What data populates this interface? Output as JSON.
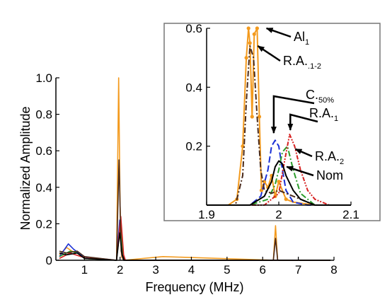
{
  "chart_data": [
    {
      "type": "line",
      "xlabel": "Frequency (MHz)",
      "ylabel": "Normalized Amplitude",
      "xlim": [
        0.2,
        8
      ],
      "ylim": [
        0,
        1.0
      ],
      "xticks": [
        "1",
        "2",
        "3",
        "4",
        "5",
        "6",
        "7",
        "8"
      ],
      "yticks": [
        "0",
        "0.2",
        "0.4",
        "0.6",
        "0.8",
        "1.0"
      ],
      "grid": false,
      "series": [
        {
          "color": "#f39a1e",
          "x": [
            0.3,
            0.5,
            0.65,
            0.8,
            1.0,
            1.9,
            1.96,
            2.0,
            2.04,
            2.1,
            3.2,
            6.3,
            6.36,
            6.42,
            7.9
          ],
          "y": [
            0.03,
            0.07,
            0.05,
            0.04,
            0.01,
            0.0,
            1.0,
            0.3,
            0.02,
            0.0,
            0.02,
            0.0,
            0.19,
            0.0,
            0.0
          ]
        },
        {
          "color": "#1a2fd6",
          "x": [
            0.3,
            0.55,
            0.7,
            0.9,
            1.1,
            1.9,
            1.99,
            2.05,
            2.1,
            7.9
          ],
          "y": [
            0.02,
            0.09,
            0.06,
            0.03,
            0.01,
            0.0,
            0.22,
            0.03,
            0.0,
            0.0
          ]
        },
        {
          "color": "#2a9d2a",
          "x": [
            0.3,
            0.6,
            0.8,
            1.0,
            1.9,
            2.01,
            2.08,
            2.12,
            7.9
          ],
          "y": [
            0.02,
            0.05,
            0.04,
            0.01,
            0.0,
            0.2,
            0.04,
            0.0,
            0.0
          ]
        },
        {
          "color": "#d62020",
          "x": [
            0.3,
            0.6,
            0.9,
            1.9,
            2.02,
            2.1,
            2.15,
            7.9
          ],
          "y": [
            0.01,
            0.04,
            0.02,
            0.0,
            0.24,
            0.03,
            0.0,
            0.0
          ]
        },
        {
          "color": "#4a2a1a",
          "x": [
            0.3,
            0.5,
            0.8,
            1.0,
            1.9,
            1.97,
            2.03,
            2.1,
            6.3,
            6.36,
            6.42,
            7.9
          ],
          "y": [
            0.05,
            0.04,
            0.05,
            0.02,
            0.0,
            0.55,
            0.05,
            0.0,
            0.0,
            0.12,
            0.0,
            0.0
          ]
        },
        {
          "color": "#000000",
          "x": [
            0.3,
            0.5,
            0.8,
            1.0,
            1.9,
            1.99,
            2.06,
            2.12,
            7.9
          ],
          "y": [
            0.04,
            0.03,
            0.04,
            0.01,
            0.0,
            0.15,
            0.03,
            0.0,
            0.0
          ]
        }
      ]
    },
    {
      "type": "line",
      "xlim": [
        1.9,
        2.1
      ],
      "ylim": [
        0,
        0.6
      ],
      "xticks": [
        "1.9",
        "2",
        "2.1"
      ],
      "yticks": [
        "0.2",
        "0.4",
        "0.6"
      ],
      "grid": false,
      "series": [
        {
          "color": "#f39a1e",
          "dash": "solid",
          "markers": true,
          "x": [
            1.9,
            1.93,
            1.942,
            1.95,
            1.955,
            1.958,
            1.96,
            1.963,
            1.966,
            1.97,
            1.973,
            1.976,
            1.98,
            1.985,
            1.99,
            1.995,
            2.0,
            2.01,
            2.02,
            2.05,
            2.1
          ],
          "y": [
            0.0,
            0.0,
            0.02,
            0.2,
            0.5,
            0.6,
            0.55,
            0.3,
            0.58,
            0.6,
            0.3,
            0.05,
            0.08,
            0.06,
            0.1,
            0.03,
            0.08,
            0.02,
            0.01,
            0.0,
            0.0
          ]
        },
        {
          "color": "#1a2fd6",
          "dash": "longdash",
          "x": [
            1.9,
            1.96,
            1.975,
            1.985,
            1.99,
            1.995,
            2.0,
            2.005,
            2.01,
            2.02,
            2.04,
            2.1
          ],
          "y": [
            0.0,
            0.0,
            0.03,
            0.12,
            0.2,
            0.22,
            0.2,
            0.12,
            0.05,
            0.01,
            0.0,
            0.0
          ]
        },
        {
          "color": "#2a9d2a",
          "dash": "dashdot",
          "x": [
            1.9,
            1.96,
            1.985,
            1.995,
            2.0,
            2.005,
            2.012,
            2.02,
            2.03,
            2.05,
            2.1
          ],
          "y": [
            0.0,
            0.0,
            0.02,
            0.07,
            0.12,
            0.18,
            0.2,
            0.12,
            0.04,
            0.0,
            0.0
          ]
        },
        {
          "color": "#d62020",
          "dash": "dashdotdot",
          "x": [
            1.9,
            1.98,
            2.0,
            2.008,
            2.015,
            2.022,
            2.03,
            2.04,
            2.05,
            2.07,
            2.1
          ],
          "y": [
            0.0,
            0.0,
            0.04,
            0.15,
            0.24,
            0.2,
            0.12,
            0.05,
            0.02,
            0.0,
            0.0
          ]
        },
        {
          "color": "#4a2a1a",
          "dash": "dashdot",
          "x": [
            1.9,
            1.94,
            1.95,
            1.955,
            1.96,
            1.965,
            1.97,
            1.975,
            1.98,
            1.99,
            2.0,
            2.02,
            2.05,
            2.1
          ],
          "y": [
            0.0,
            0.0,
            0.1,
            0.35,
            0.54,
            0.5,
            0.3,
            0.12,
            0.05,
            0.04,
            0.05,
            0.03,
            0.0,
            0.0
          ]
        },
        {
          "color": "#000000",
          "dash": "solid",
          "x": [
            1.9,
            1.96,
            1.98,
            1.99,
            1.995,
            2.0,
            2.005,
            2.01,
            2.02,
            2.03,
            2.05,
            2.1
          ],
          "y": [
            0.0,
            0.0,
            0.03,
            0.08,
            0.13,
            0.15,
            0.14,
            0.1,
            0.05,
            0.02,
            0.0,
            0.0
          ]
        }
      ]
    }
  ],
  "annotations": [
    {
      "id": "al1",
      "text": "Al",
      "sub": "1",
      "tx": 1.98,
      "ty": 0.6
    },
    {
      "id": "ra12",
      "text": "R.A.",
      "sub": ".1-2",
      "tx": 1.968,
      "ty": 0.54
    },
    {
      "id": "c50",
      "text": "C.",
      "sub": "50%",
      "tx": 1.993,
      "ty": 0.235
    },
    {
      "id": "ra1",
      "text": "R.A.",
      "sub": "1",
      "tx": 2.016,
      "ty": 0.245
    },
    {
      "id": "ra2",
      "text": "R.A.",
      "sub": "2",
      "tx": 2.02,
      "ty": 0.19
    },
    {
      "id": "nom",
      "text": "Nom",
      "sub": "",
      "tx": 2.008,
      "ty": 0.13
    }
  ]
}
